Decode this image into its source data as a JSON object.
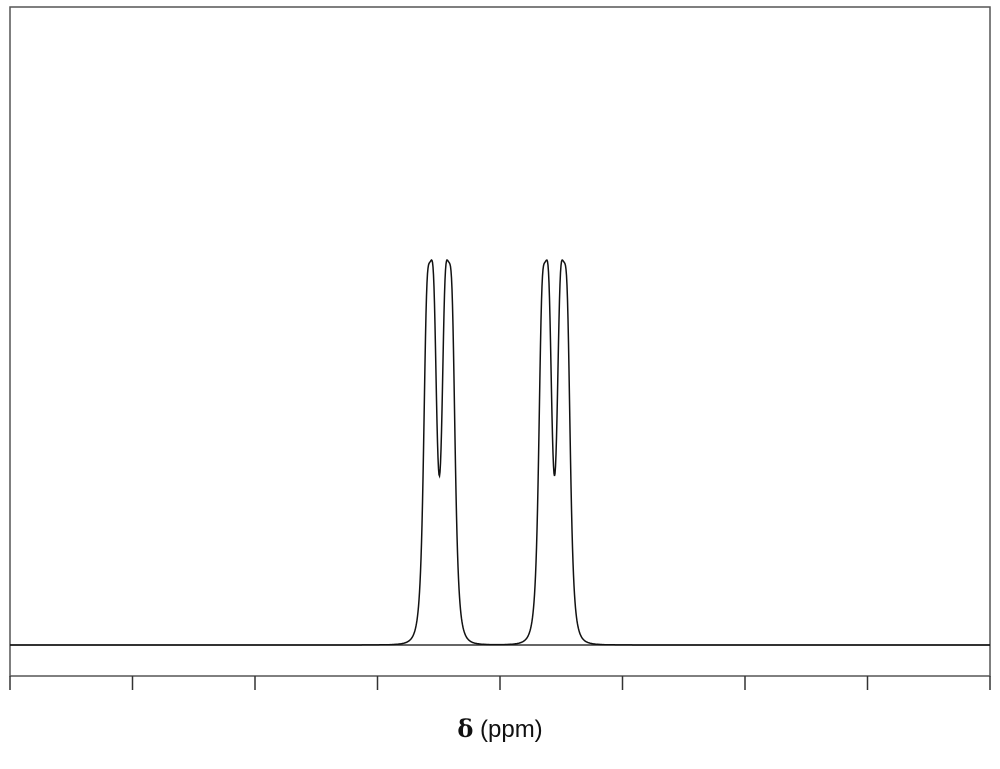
{
  "chart_data": {
    "type": "line",
    "title": "",
    "xlabel": {
      "symbol": "δ",
      "unit": "(ppm)"
    },
    "ylabel": "",
    "tick_labels": [],
    "grid": false,
    "legend": "none",
    "x_range": [
      0,
      8
    ],
    "y_range": [
      0,
      1
    ],
    "x_ticks": [
      0,
      1,
      2,
      3,
      4,
      5,
      6,
      7,
      8
    ],
    "series": [
      {
        "peaks": [
          {
            "center": 3.43,
            "height": 1.0,
            "width": 0.055
          },
          {
            "center": 3.58,
            "height": 1.0,
            "width": 0.055
          },
          {
            "center": 4.37,
            "height": 1.0,
            "width": 0.055
          },
          {
            "center": 4.52,
            "height": 1.0,
            "width": 0.055
          }
        ]
      }
    ],
    "colors": {
      "line": "#111111",
      "frame": "#555555",
      "background": "#ffffff"
    }
  }
}
